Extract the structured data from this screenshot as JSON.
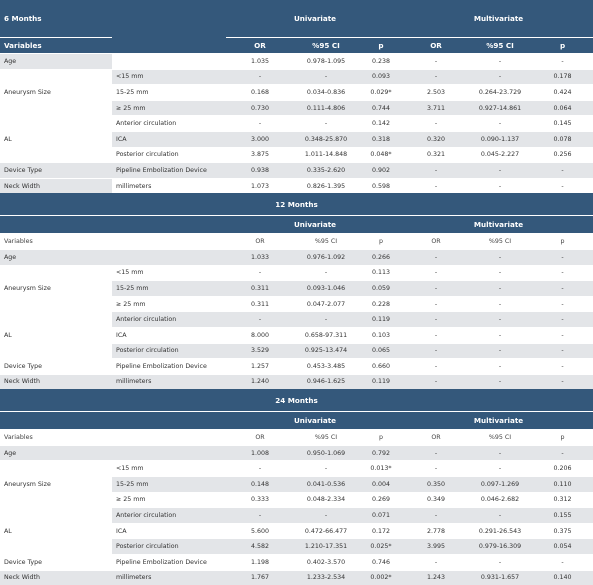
{
  "blocks": [
    {
      "title": "6 Months",
      "univariate": "Univariate",
      "multivariate": "Multivariate",
      "columns": [
        "Variables",
        "OR",
        "%95 CI",
        "p",
        "OR",
        "%95 CI",
        "p"
      ],
      "rows": {
        "age": [
          "Age",
          "",
          "1.035",
          "0.978-1.095",
          "0.238",
          "-",
          "-",
          "-"
        ],
        "an1": [
          "",
          "<15 mm",
          "-",
          "-",
          "0.093",
          "-",
          "-",
          "0.178"
        ],
        "an2": [
          "Aneurysm Size",
          "15-25 mm",
          "0.168",
          "0.034-0.836",
          "0.029*",
          "2.503",
          "0.264-23.729",
          "0.424"
        ],
        "an3": [
          "",
          "≥ 25 mm",
          "0.730",
          "0.111-4.806",
          "0.744",
          "3.711",
          "0.927-14.861",
          "0.064"
        ],
        "al1": [
          "",
          "Anterior circulation",
          "-",
          "-",
          "0.142",
          "-",
          "-",
          "0.145"
        ],
        "al2": [
          "AL",
          "ICA",
          "3.000",
          "0.348-25.870",
          "0.318",
          "0.320",
          "0.090-1.137",
          "0.078"
        ],
        "al3": [
          "",
          "Posterior circulation",
          "3.875",
          "1.011-14.848",
          "0.048*",
          "0.321",
          "0.045-2.227",
          "0.256"
        ],
        "dev": [
          "Device Type",
          "Pipeline Embolization Device",
          "0.938",
          "0.335-2.620",
          "0.902",
          "-",
          "-",
          "-"
        ],
        "neck": [
          "Neck Width",
          "millimeters",
          "1.073",
          "0.826-1.395",
          "0.598",
          "-",
          "-",
          "-"
        ]
      }
    },
    {
      "title": "12 Months",
      "univariate": "Univariate",
      "multivariate": "Multivariate",
      "columns": [
        "Variables",
        "OR",
        "%95 CI",
        "p",
        "OR",
        "%95 CI",
        "p"
      ],
      "rows": {
        "age": [
          "Age",
          "",
          "1.033",
          "0.976-1.092",
          "0.266",
          "-",
          "-",
          "-"
        ],
        "an1": [
          "",
          "<15 mm",
          "-",
          "-",
          "0.113",
          "-",
          "-",
          "-"
        ],
        "an2": [
          "Aneurysm Size",
          "15-25 mm",
          "0.311",
          "0.093-1.046",
          "0.059",
          "-",
          "-",
          "-"
        ],
        "an3": [
          "",
          "≥ 25 mm",
          "0.311",
          "0.047-2.077",
          "0.228",
          "-",
          "-",
          "-"
        ],
        "al1": [
          "",
          "Anterior circulation",
          "-",
          "-",
          "0.119",
          "-",
          "-",
          "-"
        ],
        "al2": [
          "AL",
          "ICA",
          "8.000",
          "0.658-97.311",
          "0.103",
          "-",
          "-",
          "-"
        ],
        "al3": [
          "",
          "Posterior circulation",
          "3.529",
          "0.925-13.474",
          "0.065",
          "-",
          "-",
          "-"
        ],
        "dev": [
          "Device Type",
          "Pipeline Embolization Device",
          "1.257",
          "0.453-3.485",
          "0.660",
          "-",
          "-",
          "-"
        ],
        "neck": [
          "Neck Width",
          "millimeters",
          "1.240",
          "0.946-1.625",
          "0.119",
          "-",
          "-",
          "-"
        ]
      }
    },
    {
      "title": "24 Months",
      "univariate": "Univariate",
      "multivariate": "Multivariate",
      "columns": [
        "Variables",
        "OR",
        "%95 CI",
        "p",
        "OR",
        "%95 CI",
        "p"
      ],
      "rows": {
        "age": [
          "Age",
          "",
          "1.008",
          "0.950-1.069",
          "0.792",
          "-",
          "-",
          "-"
        ],
        "an1": [
          "",
          "<15 mm",
          "-",
          "-",
          "0.013*",
          "-",
          "-",
          "0.206"
        ],
        "an2": [
          "Aneurysm Size",
          "15-25 mm",
          "0.148",
          "0.041-0.536",
          "0.004",
          "0.350",
          "0.097-1.269",
          "0.110"
        ],
        "an3": [
          "",
          "≥ 25 mm",
          "0.333",
          "0.048-2.334",
          "0.269",
          "0.349",
          "0.046-2.682",
          "0.312"
        ],
        "al1": [
          "",
          "Anterior circulation",
          "-",
          "-",
          "0.071",
          "-",
          "-",
          "0.155"
        ],
        "al2": [
          "AL",
          "ICA",
          "5.600",
          "0.472-66.477",
          "0.172",
          "2.778",
          "0.291-26.543",
          "0.375"
        ],
        "al3": [
          "",
          "Posterior circulation",
          "4.582",
          "1.210-17.351",
          "0.025*",
          "3.995",
          "0.979-16.309",
          "0.054"
        ],
        "dev": [
          "Device Type",
          "Pipeline Embolization Device",
          "1.198",
          "0.402-3.570",
          "0.746",
          "-",
          "-",
          "-"
        ],
        "neck": [
          "Neck Width",
          "millimeters",
          "1.767",
          "1.233-2.534",
          "0.002*",
          "1.243",
          "0.931-1.657",
          "0.140"
        ]
      }
    }
  ]
}
